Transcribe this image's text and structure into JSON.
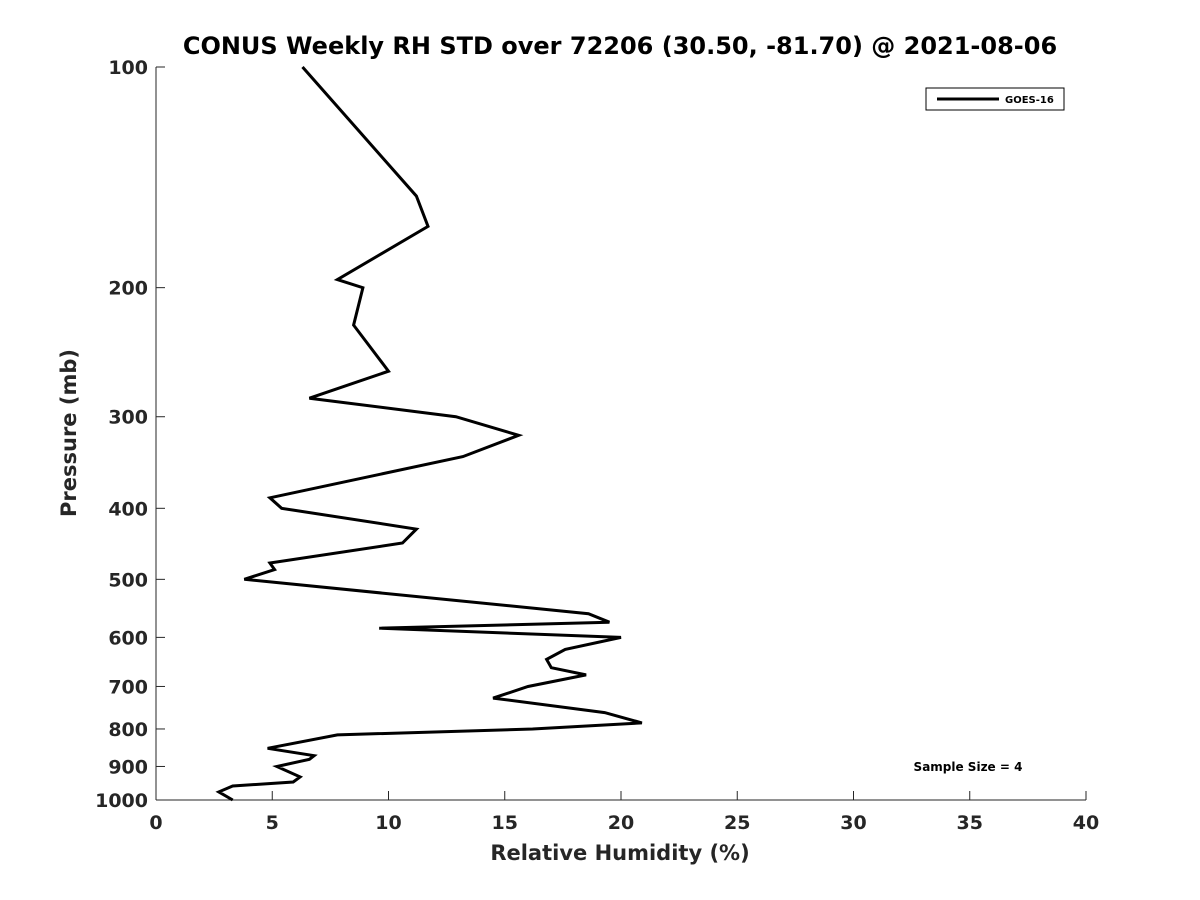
{
  "chart_data": {
    "type": "line",
    "title": "CONUS Weekly RH STD over 72206 (30.50, -81.70) @ 2021-08-06",
    "xlabel": "Relative Humidity (%)",
    "ylabel": "Pressure (mb)",
    "xlim": [
      0,
      40
    ],
    "ylim": [
      100,
      1000
    ],
    "y_scale": "log",
    "y_reversed": true,
    "x_ticks": [
      0,
      5,
      10,
      15,
      20,
      25,
      30,
      35,
      40
    ],
    "x_tick_labels": [
      "0",
      "5",
      "10",
      "15",
      "20",
      "25",
      "30",
      "35",
      "40"
    ],
    "y_ticks": [
      100,
      200,
      300,
      400,
      500,
      600,
      700,
      800,
      900,
      1000
    ],
    "y_tick_labels": [
      "100",
      "200",
      "300",
      "400",
      "500",
      "600",
      "700",
      "800",
      "900",
      "1000"
    ],
    "grid": false,
    "legend_position": "top-right",
    "series": [
      {
        "name": "GOES-16",
        "color": "#000000",
        "points": [
          [
            6.3,
            100
          ],
          [
            11.2,
            150
          ],
          [
            11.7,
            165
          ],
          [
            7.8,
            195
          ],
          [
            8.9,
            200
          ],
          [
            8.5,
            225
          ],
          [
            10.0,
            260
          ],
          [
            6.6,
            283
          ],
          [
            12.9,
            300
          ],
          [
            15.6,
            318
          ],
          [
            13.2,
            340
          ],
          [
            4.9,
            387
          ],
          [
            5.4,
            400
          ],
          [
            11.2,
            427
          ],
          [
            10.6,
            446
          ],
          [
            4.9,
            475
          ],
          [
            5.1,
            485
          ],
          [
            3.8,
            500
          ],
          [
            18.6,
            557
          ],
          [
            19.5,
            572
          ],
          [
            9.6,
            583
          ],
          [
            20.0,
            600
          ],
          [
            17.6,
            623
          ],
          [
            16.8,
            643
          ],
          [
            17.0,
            660
          ],
          [
            18.5,
            675
          ],
          [
            16.0,
            700
          ],
          [
            14.5,
            726
          ],
          [
            19.3,
            760
          ],
          [
            20.9,
            785
          ],
          [
            16.2,
            800
          ],
          [
            7.8,
            815
          ],
          [
            4.8,
            850
          ],
          [
            6.8,
            870
          ],
          [
            6.6,
            880
          ],
          [
            5.2,
            900
          ],
          [
            6.2,
            930
          ],
          [
            5.9,
            945
          ],
          [
            3.3,
            957
          ],
          [
            2.7,
            975
          ],
          [
            3.3,
            1000
          ]
        ]
      }
    ],
    "annotations": [
      "Sample Size = 4"
    ],
    "line_width": 3
  }
}
